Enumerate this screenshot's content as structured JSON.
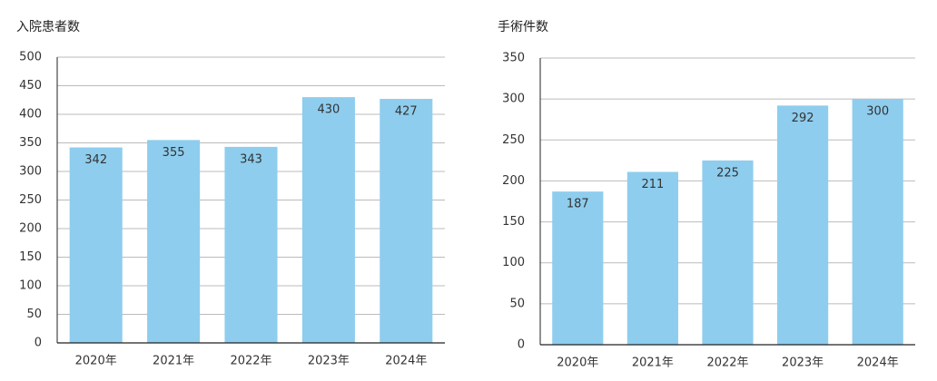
{
  "chart_data": [
    {
      "type": "bar",
      "title": "入院患者数",
      "categories": [
        "2020年",
        "2021年",
        "2022年",
        "2023年",
        "2024年"
      ],
      "values": [
        342,
        355,
        343,
        430,
        427
      ],
      "color": "#8ecdee",
      "ylim": [
        0,
        500
      ],
      "yticks": [
        0,
        50,
        100,
        150,
        200,
        250,
        300,
        350,
        400,
        450,
        500
      ],
      "grid": true
    },
    {
      "type": "bar",
      "title": "手術件数",
      "categories": [
        "2020年",
        "2021年",
        "2022年",
        "2023年",
        "2024年"
      ],
      "values": [
        187,
        211,
        225,
        292,
        300
      ],
      "color": "#8ecdee",
      "ylim": [
        0,
        350
      ],
      "yticks": [
        0,
        50,
        100,
        150,
        200,
        250,
        300,
        350
      ],
      "grid": true
    }
  ]
}
